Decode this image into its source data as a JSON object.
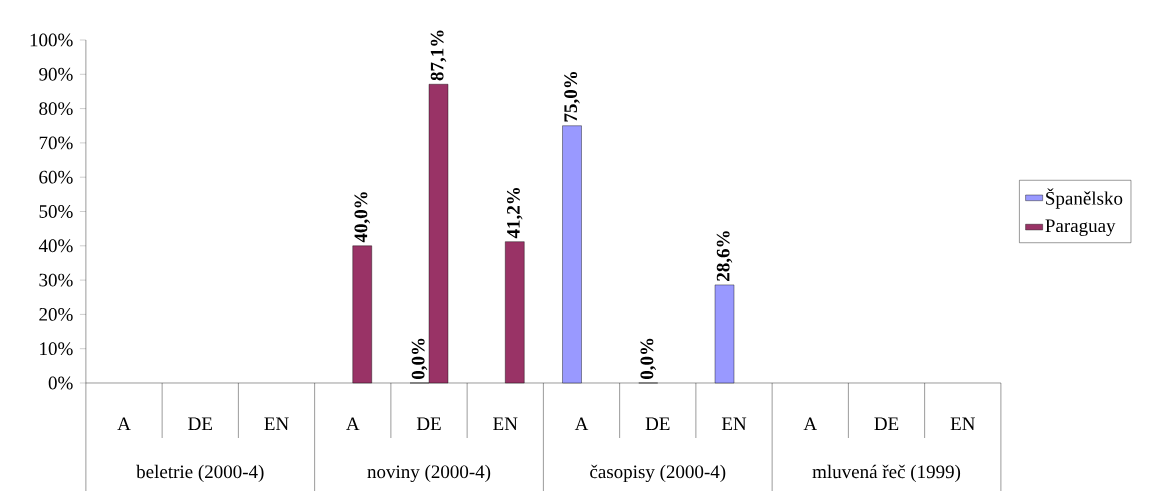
{
  "chart_data": {
    "type": "bar",
    "categories": [
      "A",
      "DE",
      "EN",
      "A",
      "DE",
      "EN",
      "A",
      "DE",
      "EN",
      "A",
      "DE",
      "EN"
    ],
    "annotations": [
      "beletrie (2000-4)",
      "noviny (2000-4)",
      "časopisy (2000-4)",
      "mluvená řeč (1999)"
    ],
    "series": [
      {
        "name": "Španělsko",
        "color": "#9999ff",
        "values": [
          null,
          null,
          null,
          null,
          0.0,
          null,
          75.0,
          0.0,
          28.6,
          null,
          null,
          null
        ],
        "value_labels": [
          null,
          null,
          null,
          null,
          "0,0%",
          null,
          "75,0%",
          "0,0%",
          "28,6%",
          null,
          null,
          null
        ]
      },
      {
        "name": "Paraguay",
        "color": "#993366",
        "values": [
          null,
          null,
          null,
          40.0,
          87.1,
          41.2,
          null,
          null,
          null,
          null,
          null,
          null
        ],
        "value_labels": [
          null,
          null,
          null,
          "40,0%",
          "87,1%",
          "41,2%",
          null,
          null,
          null,
          null,
          null,
          null
        ]
      }
    ],
    "ylim": [
      0,
      100
    ],
    "yticks": [
      {
        "value": 0,
        "label": "0%"
      },
      {
        "value": 10,
        "label": "10%"
      },
      {
        "value": 20,
        "label": "20%"
      },
      {
        "value": 30,
        "label": "30%"
      },
      {
        "value": 40,
        "label": "40%"
      },
      {
        "value": 50,
        "label": "50%"
      },
      {
        "value": 60,
        "label": "60%"
      },
      {
        "value": 70,
        "label": "70%"
      },
      {
        "value": 80,
        "label": "80%"
      },
      {
        "value": 90,
        "label": "90%"
      },
      {
        "value": 100,
        "label": "100%"
      }
    ],
    "legend": "right",
    "grid": false
  }
}
